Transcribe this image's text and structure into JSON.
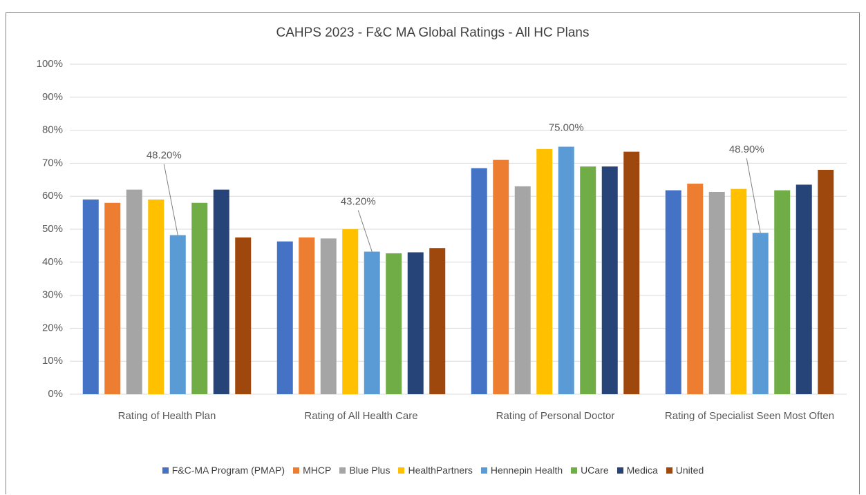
{
  "chart_data": {
    "type": "bar",
    "title": "CAHPS 2023 - F&C MA Global Ratings - All HC Plans",
    "categories": [
      "Rating of Health Plan",
      "Rating of All Health Care",
      "Rating of Personal Doctor",
      "Rating of Specialist Seen Most Often"
    ],
    "series": [
      {
        "name": "F&C-MA Program (PMAP)",
        "color": "#4472c4",
        "values": [
          59,
          46.3,
          68.5,
          61.8
        ]
      },
      {
        "name": "MHCP",
        "color": "#ed7d31",
        "values": [
          58,
          47.5,
          71,
          63.8
        ]
      },
      {
        "name": "Blue Plus",
        "color": "#a5a5a5",
        "values": [
          62,
          47.2,
          63,
          61.3
        ]
      },
      {
        "name": "HealthPartners",
        "color": "#ffc000",
        "values": [
          59,
          50,
          74.3,
          62.2
        ]
      },
      {
        "name": "Hennepin Health",
        "color": "#5b9bd5",
        "values": [
          48.2,
          43.2,
          75,
          48.9
        ],
        "value_labels": [
          "48.20%",
          "43.20%",
          "75.00%",
          "48.90%"
        ]
      },
      {
        "name": "UCare",
        "color": "#70ad47",
        "values": [
          58,
          42.7,
          69,
          61.8
        ]
      },
      {
        "name": "Medica",
        "color": "#264478",
        "values": [
          62,
          43,
          69,
          63.5
        ]
      },
      {
        "name": "United",
        "color": "#9e480e",
        "values": [
          47.5,
          44.3,
          73.5,
          68
        ]
      }
    ],
    "ylim": [
      0,
      100
    ],
    "yticks": [
      {
        "value": 0,
        "label": "0%"
      },
      {
        "value": 10,
        "label": "10%"
      },
      {
        "value": 20,
        "label": "20%"
      },
      {
        "value": 30,
        "label": "30%"
      },
      {
        "value": 40,
        "label": "40%"
      },
      {
        "value": 50,
        "label": "50%"
      },
      {
        "value": 60,
        "label": "60%"
      },
      {
        "value": 70,
        "label": "70%"
      },
      {
        "value": 80,
        "label": "80%"
      },
      {
        "value": 90,
        "label": "90%"
      },
      {
        "value": 100,
        "label": "100%"
      }
    ],
    "grid": true,
    "legend": "bottom"
  }
}
